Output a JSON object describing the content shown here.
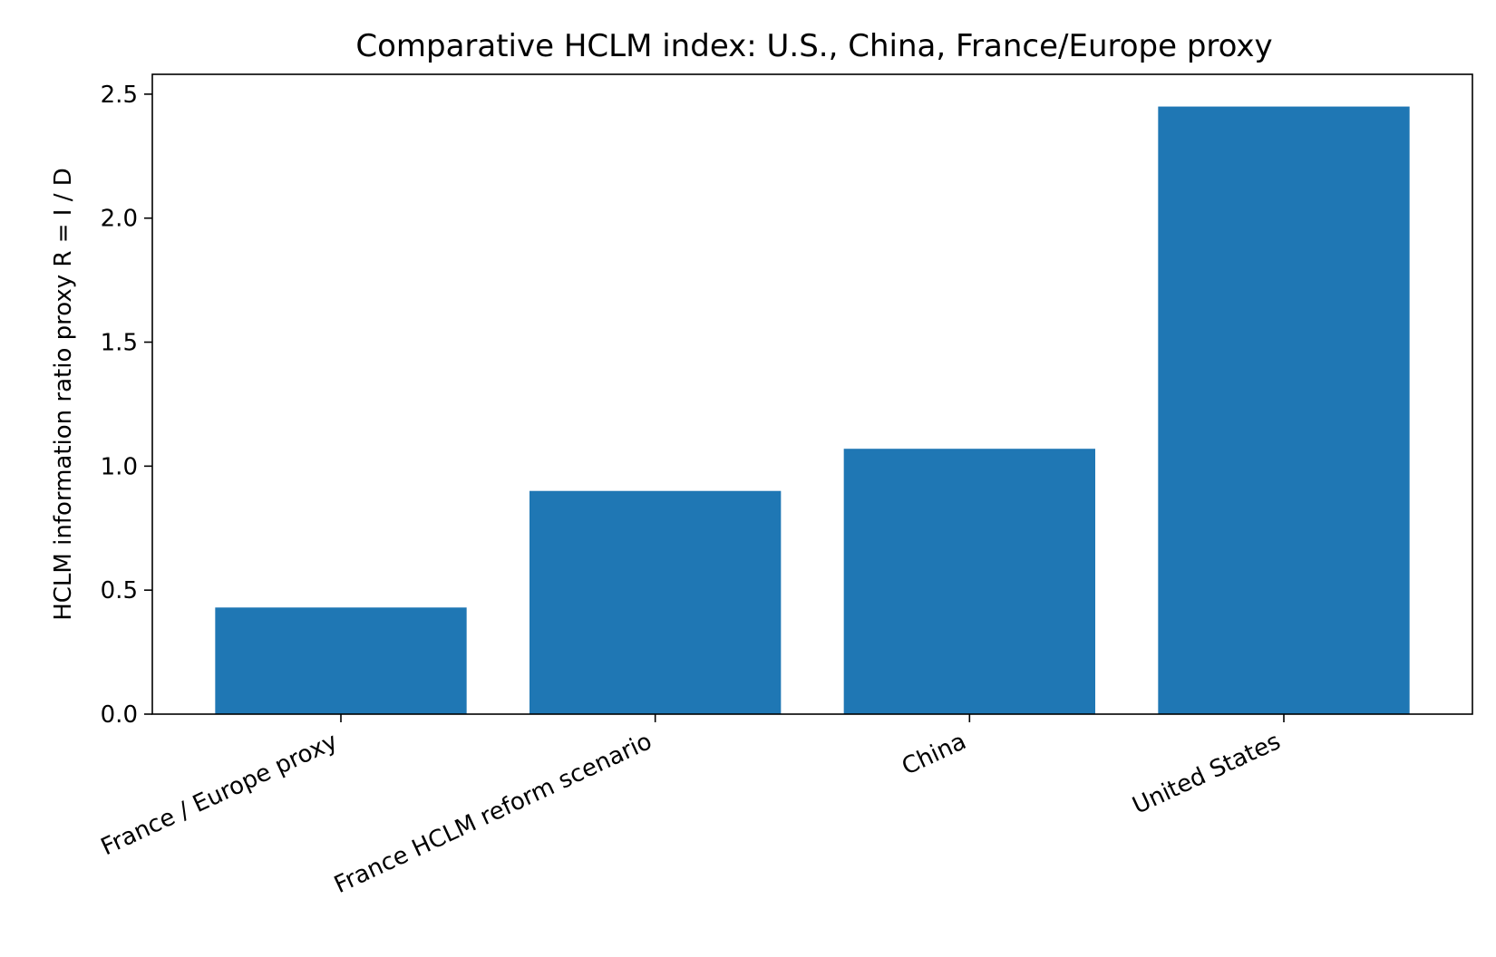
{
  "chart_data": {
    "type": "bar",
    "title": "Comparative HCLM index: U.S., China, France/Europe proxy",
    "xlabel": "",
    "ylabel": "HCLM information ratio proxy R = I / D",
    "categories": [
      "France / Europe proxy",
      "France HCLM reform scenario",
      "China",
      "United States"
    ],
    "values": [
      0.43,
      0.9,
      1.07,
      2.45
    ],
    "ylim": [
      0,
      2.58
    ],
    "yticks": [
      "0.0",
      "0.5",
      "1.0",
      "1.5",
      "2.0",
      "2.5"
    ],
    "bar_color": "#1f77b4",
    "grid": false,
    "legend": "none"
  }
}
